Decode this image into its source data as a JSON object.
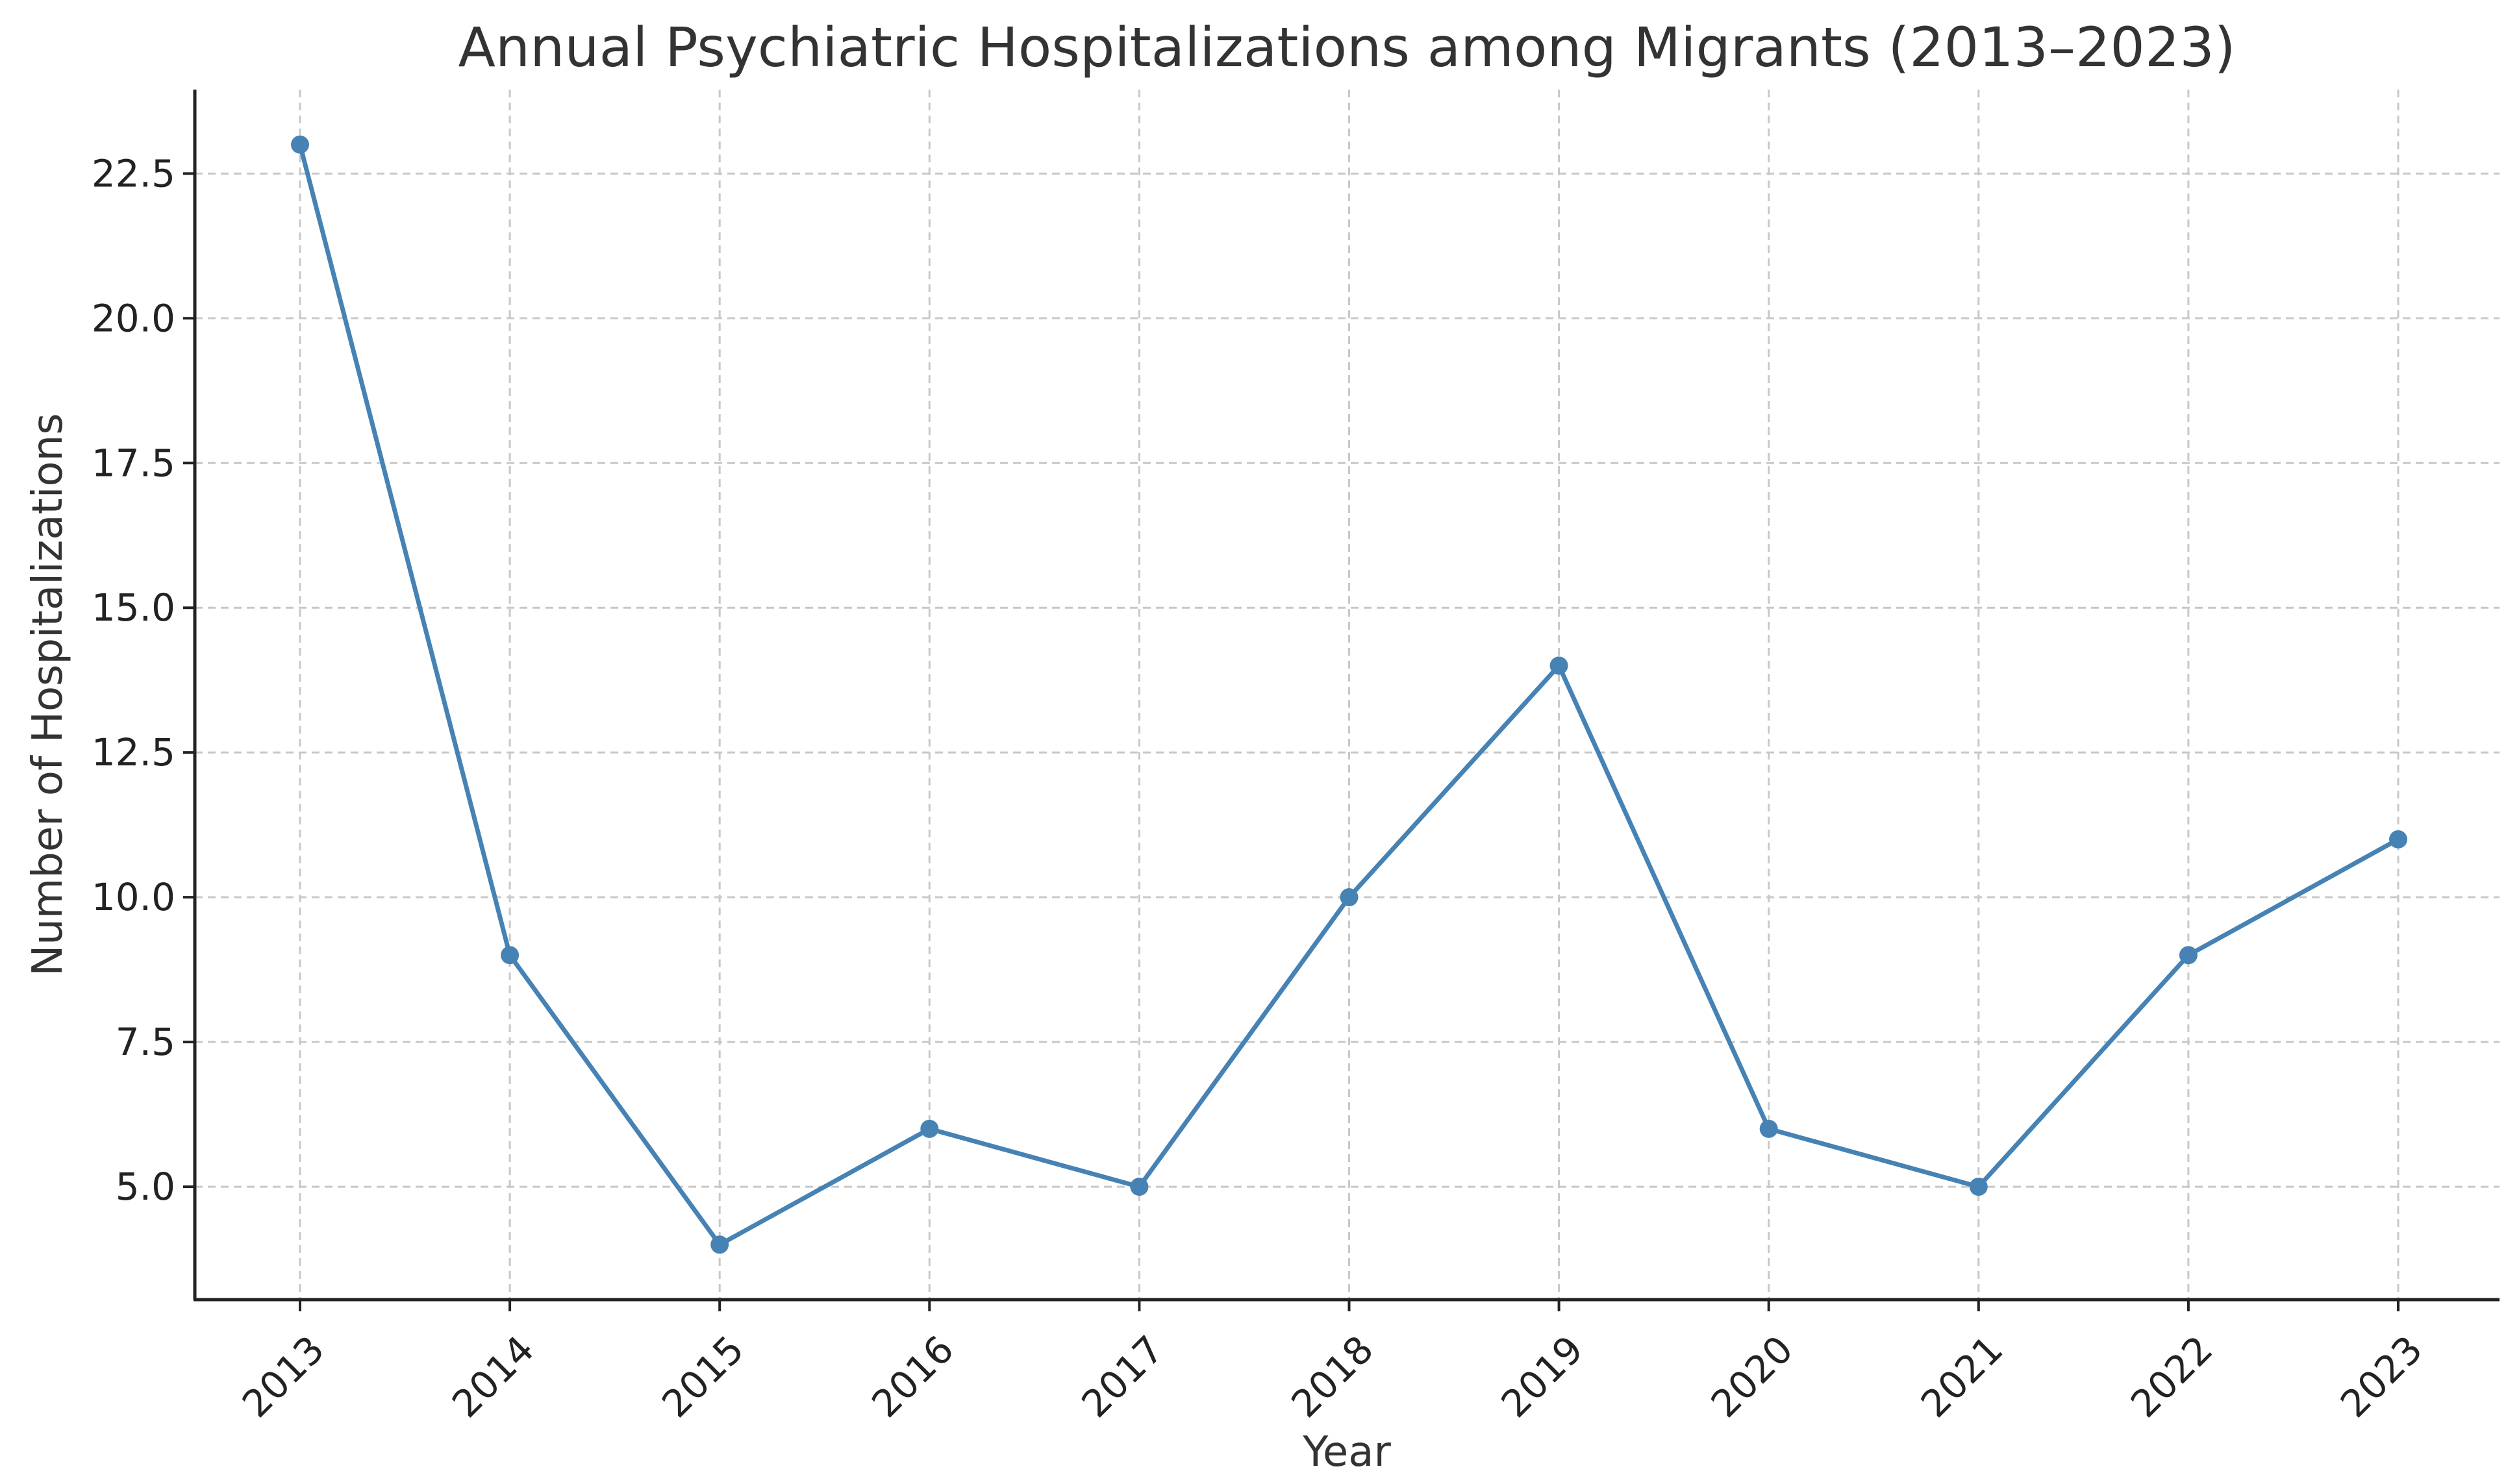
{
  "chart_data": {
    "type": "line",
    "title": "Annual Psychiatric Hospitalizations among Migrants (2013–2023)",
    "xlabel": "Year",
    "ylabel": "Number of Hospitalizations",
    "x": [
      "2013",
      "2014",
      "2015",
      "2016",
      "2017",
      "2018",
      "2019",
      "2020",
      "2021",
      "2022",
      "2023"
    ],
    "series": [
      {
        "values": [
          23,
          9,
          4,
          6,
          5,
          10,
          14,
          6,
          5,
          9,
          11
        ],
        "color": "#4682b4",
        "marker": "circle"
      }
    ],
    "yticks": [
      "5.0",
      "7.5",
      "10.0",
      "12.5",
      "15.0",
      "17.5",
      "20.0",
      "22.5"
    ],
    "ylim": [
      3.05,
      23.95
    ],
    "grid": true,
    "x_tick_rotation": 45
  }
}
